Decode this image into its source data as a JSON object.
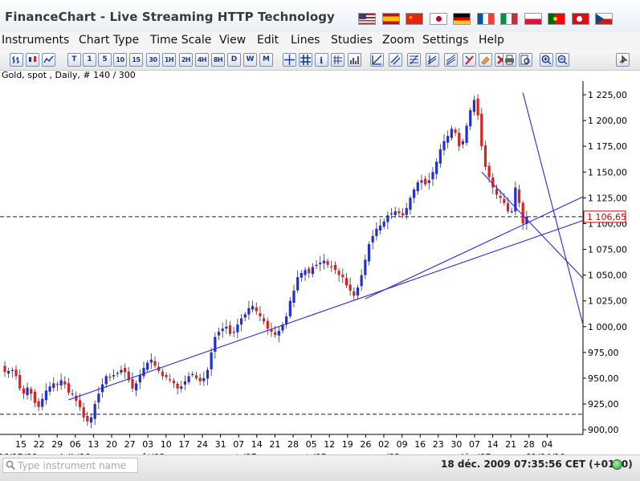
{
  "app": {
    "title": "FinanceChart - Live Streaming HTTP Technology"
  },
  "flags": [
    {
      "name": "flag-us",
      "colors": [
        "#b22234",
        "#ffffff",
        "#3c3b6e"
      ]
    },
    {
      "name": "flag-es",
      "colors": [
        "#c60b1e",
        "#ffc400",
        "#c60b1e"
      ]
    },
    {
      "name": "flag-cn",
      "colors": [
        "#de2910",
        "#ffde00"
      ]
    },
    {
      "name": "flag-jp",
      "colors": [
        "#ffffff",
        "#bc002d"
      ]
    },
    {
      "name": "flag-de",
      "colors": [
        "#000000",
        "#dd0000",
        "#ffce00"
      ]
    },
    {
      "name": "flag-fr",
      "colors": [
        "#0055a4",
        "#ffffff",
        "#ef4135"
      ]
    },
    {
      "name": "flag-it",
      "colors": [
        "#009246",
        "#ffffff",
        "#ce2b37"
      ]
    },
    {
      "name": "flag-pl",
      "colors": [
        "#ffffff",
        "#dc143c"
      ]
    },
    {
      "name": "flag-pt",
      "colors": [
        "#006600",
        "#ff0000",
        "#ffcc00"
      ]
    },
    {
      "name": "flag-tr",
      "colors": [
        "#e30a17",
        "#ffffff"
      ]
    },
    {
      "name": "flag-cz",
      "colors": [
        "#ffffff",
        "#d7141a",
        "#11457e"
      ]
    }
  ],
  "menu": [
    "Instruments",
    "Chart Type",
    "Time Scale",
    "View",
    "Edit",
    "Lines",
    "Studies",
    "Zoom",
    "Settings",
    "Help"
  ],
  "toolbar": {
    "chart_types": [
      {
        "icon": "bar-chart-icon"
      },
      {
        "icon": "candlestick-icon"
      },
      {
        "icon": "line-chart-icon"
      }
    ],
    "timeframes": [
      "T",
      "1",
      "5",
      "10",
      "15",
      "30",
      "1H",
      "2H",
      "4H",
      "8H",
      "D",
      "W",
      "M"
    ],
    "tools": [
      {
        "icon": "crosshair-icon"
      },
      {
        "icon": "grid-icon"
      },
      {
        "icon": "info-icon"
      },
      {
        "icon": "numbers-grid-icon"
      },
      {
        "icon": "volume-icon"
      },
      {
        "icon": "trendline-icon"
      },
      {
        "icon": "parallel-lines-icon"
      },
      {
        "icon": "fibonacci-icon"
      },
      {
        "icon": "channel-icon"
      },
      {
        "icon": "regression-icon"
      },
      {
        "icon": "magnet-icon"
      },
      {
        "icon": "eraser-icon"
      },
      {
        "icon": "delete-icon"
      },
      {
        "icon": "print-icon"
      },
      {
        "icon": "print-preview-icon"
      },
      {
        "icon": "zoom-in-icon"
      },
      {
        "icon": "zoom-out-icon"
      }
    ],
    "pin_icon": "pin-icon"
  },
  "instrument": {
    "label": "Gold, spot , Daily, # 140 / 300"
  },
  "chart_data": {
    "type": "candlestick",
    "title": "",
    "ylim": [
      897,
      1232
    ],
    "y_ticks": [
      900,
      925,
      950,
      975,
      1000,
      1025,
      1050,
      1075,
      1100,
      1125,
      1150,
      1175,
      1200,
      1225
    ],
    "y_tick_labels": [
      "900,00",
      "925,00",
      "950,00",
      "975,00",
      "1 000,00",
      "1 025,00",
      "1 050,00",
      "1 075,00",
      "1 100,00",
      "1 125,00",
      "1 150,00",
      "1 175,00",
      "1 200,00",
      "1 225,00"
    ],
    "x_day_labels": [
      "15",
      "22",
      "29",
      "06",
      "13",
      "20",
      "27",
      "03",
      "10",
      "17",
      "24",
      "31",
      "07",
      "14",
      "21",
      "28",
      "05",
      "12",
      "19",
      "26",
      "02",
      "09",
      "16",
      "23",
      "30",
      "07",
      "14",
      "21",
      "28",
      "04"
    ],
    "x_month_labels": [
      {
        "label": "06/15/09",
        "at": 0
      },
      {
        "label": "juil./06",
        "at": 3
      },
      {
        "label": "août/03",
        "at": 7
      },
      {
        "label": "sept./07",
        "at": 12
      },
      {
        "label": "oct./05",
        "at": 16
      },
      {
        "label": "nov./02",
        "at": 20
      },
      {
        "label": "déc./07",
        "at": 25
      },
      {
        "label": "01/04/10",
        "at": 29
      }
    ],
    "current_price": 1106.65,
    "current_price_label": "1 106,65",
    "horizontal_line": 915,
    "up_color": "#1f2fd6",
    "down_color": "#e0201e",
    "closes": [
      956,
      957,
      958,
      952,
      940,
      935,
      941,
      935,
      926,
      922,
      930,
      938,
      942,
      945,
      944,
      948,
      944,
      936,
      935,
      928,
      922,
      912,
      908,
      912,
      925,
      935,
      944,
      952,
      951,
      953,
      955,
      958,
      956,
      948,
      940,
      945,
      953,
      960,
      965,
      968,
      962,
      957,
      952,
      951,
      948,
      945,
      940,
      942,
      947,
      952,
      954,
      950,
      947,
      950,
      958,
      975,
      990,
      995,
      998,
      1000,
      993,
      995,
      1002,
      1008,
      1012,
      1018,
      1020,
      1015,
      1010,
      1005,
      998,
      995,
      992,
      996,
      1002,
      1010,
      1025,
      1035,
      1048,
      1052,
      1055,
      1052,
      1058,
      1060,
      1062,
      1064,
      1060,
      1058,
      1055,
      1050,
      1048,
      1040,
      1035,
      1030,
      1038,
      1050,
      1065,
      1080,
      1088,
      1095,
      1098,
      1102,
      1108,
      1110,
      1112,
      1110,
      1108,
      1115,
      1125,
      1133,
      1140,
      1142,
      1138,
      1142,
      1150,
      1160,
      1172,
      1180,
      1185,
      1192,
      1188,
      1175,
      1180,
      1195,
      1210,
      1220,
      1205,
      1175,
      1155,
      1145,
      1135,
      1128,
      1125,
      1120,
      1112,
      1112,
      1135,
      1120,
      1100,
      1106.65
    ],
    "trendlines": [
      {
        "from": [
          17,
          929
        ],
        "to": [
          159,
          1103
        ]
      },
      {
        "from": [
          96,
          1027
        ],
        "to": [
          159,
          1126
        ]
      },
      {
        "from": [
          127,
          1150
        ],
        "to": [
          159,
          1047
        ]
      },
      {
        "from": [
          138,
          1227
        ],
        "to": [
          159,
          1002
        ]
      }
    ]
  },
  "statusbar": {
    "search_placeholder": "Type instrument name",
    "datetime": "18 déc. 2009 07:35:56  CET (+0100)",
    "connection_color": "#2ba83a"
  }
}
